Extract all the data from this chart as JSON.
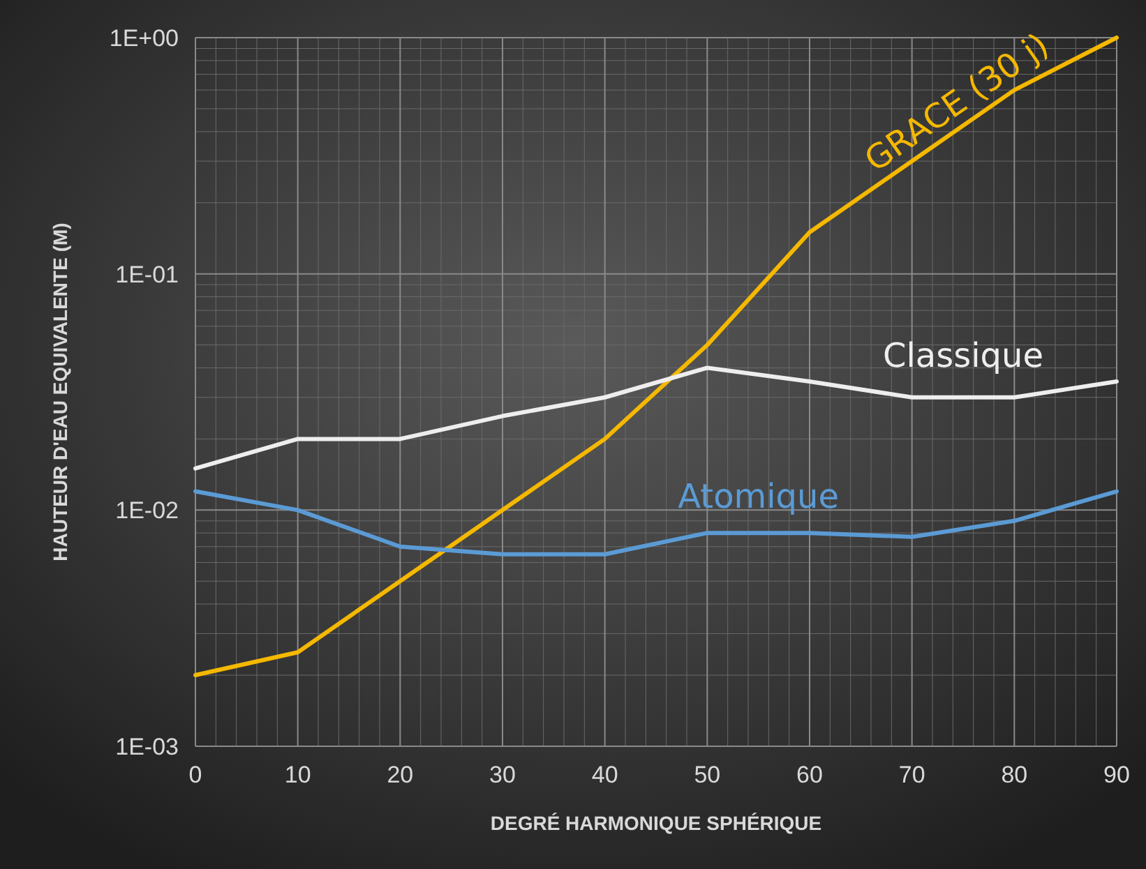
{
  "chart_data": {
    "type": "line",
    "xlabel": "DEGRÉ HARMONIQUE SPHÉRIQUE",
    "ylabel": "HAUTEUR D'EAU EQUIVALENTE (M)",
    "x": [
      0,
      10,
      20,
      30,
      40,
      50,
      60,
      70,
      80,
      90
    ],
    "series": [
      {
        "name": "GRACE (30 j)",
        "color": "#f5b800",
        "values": [
          0.002,
          0.0025,
          0.005,
          0.01,
          0.02,
          0.05,
          0.15,
          0.3,
          0.6,
          1
        ]
      },
      {
        "name": "Classique",
        "color": "#eeeeee",
        "values": [
          0.015,
          0.02,
          0.02,
          0.025,
          0.03,
          0.04,
          0.035,
          0.03,
          0.03,
          0.035
        ]
      },
      {
        "name": "Atomique",
        "color": "#5b9bd5",
        "values": [
          0.012,
          0.01,
          0.007,
          0.0065,
          0.0065,
          0.008,
          0.008,
          0.0077,
          0.009,
          0.012
        ]
      }
    ],
    "log": "y",
    "xlim": [
      0,
      90
    ],
    "xticks": [
      0,
      10,
      20,
      30,
      40,
      50,
      60,
      70,
      80,
      90
    ],
    "ylim": [
      0.001,
      1
    ],
    "yticks": [
      {
        "value": 0.001,
        "label": "1E-03"
      },
      {
        "value": 0.01,
        "label": "1E-02"
      },
      {
        "value": 0.1,
        "label": "1E-01"
      },
      {
        "value": 1,
        "label": "1E+00"
      }
    ],
    "grid": true,
    "marker": "none",
    "line_style": "solid"
  }
}
